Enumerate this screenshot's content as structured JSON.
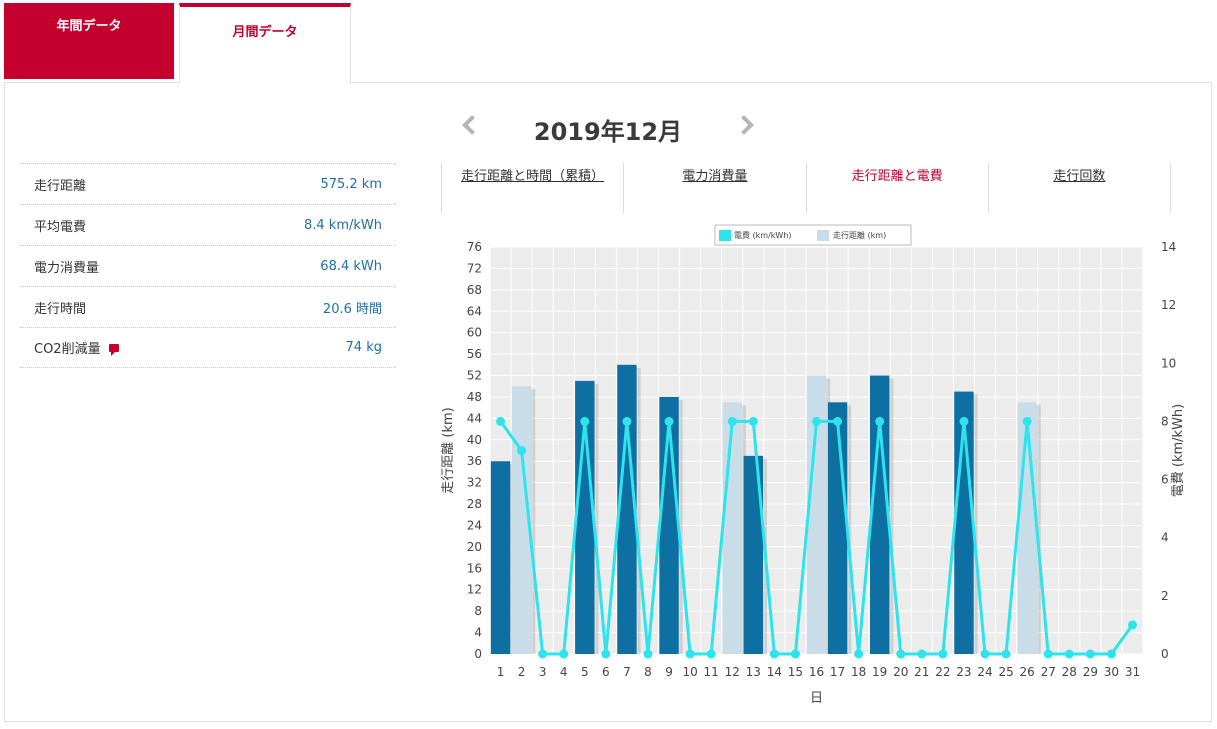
{
  "tabs": {
    "annual": "年間データ",
    "monthly": "月間データ"
  },
  "month_title": "2019年12月",
  "summary": [
    {
      "label": "走行距離",
      "value": "575.2 km"
    },
    {
      "label": "平均電費",
      "value": "8.4 km/kWh"
    },
    {
      "label": "電力消費量",
      "value": "68.4 kWh"
    },
    {
      "label": "走行時間",
      "value": "20.6 時間"
    },
    {
      "label": "CO2削減量",
      "value": "74 kg",
      "icon": "comment-icon"
    }
  ],
  "chart_tabs": [
    {
      "label": "走行距離と時間（累積）",
      "active": false
    },
    {
      "label": "電力消費量",
      "active": false
    },
    {
      "label": "走行距離と電費",
      "active": true
    },
    {
      "label": "走行回数",
      "active": false
    }
  ],
  "colors": {
    "accent": "#c4002f",
    "bar_dark": "#0e6fa3",
    "bar_light": "#c9dde9",
    "line": "#2de4ec",
    "value_text": "#1f6fa6"
  },
  "chart_data": {
    "type": "bar",
    "categories": [
      "1",
      "2",
      "3",
      "4",
      "5",
      "6",
      "7",
      "8",
      "9",
      "10",
      "11",
      "12",
      "13",
      "14",
      "15",
      "16",
      "17",
      "18",
      "19",
      "20",
      "21",
      "22",
      "23",
      "24",
      "25",
      "26",
      "27",
      "28",
      "29",
      "30",
      "31"
    ],
    "series": [
      {
        "name": "走行距離 (km)",
        "type": "bar",
        "axis": "left",
        "values": [
          36,
          50,
          0,
          0,
          51,
          0,
          54,
          0,
          48,
          0,
          0,
          47,
          37,
          0,
          0,
          52,
          47,
          0,
          52,
          0,
          0,
          0,
          49,
          0,
          0,
          47,
          0,
          0,
          0,
          0,
          0
        ],
        "style": [
          "dark",
          "light",
          "dark",
          "dark",
          "dark",
          "dark",
          "dark",
          "dark",
          "dark",
          "dark",
          "dark",
          "light",
          "dark",
          "dark",
          "dark",
          "light",
          "dark",
          "dark",
          "dark",
          "dark",
          "dark",
          "dark",
          "dark",
          "dark",
          "dark",
          "light",
          "dark",
          "dark",
          "dark",
          "dark",
          "dark"
        ]
      },
      {
        "name": "電費 (km/kWh)",
        "type": "line",
        "axis": "right",
        "values": [
          8,
          7,
          0,
          0,
          8,
          0,
          8,
          0,
          8,
          0,
          0,
          8,
          8,
          0,
          0,
          8,
          8,
          0,
          8,
          0,
          0,
          0,
          8,
          0,
          0,
          8,
          0,
          0,
          0,
          0,
          1
        ]
      }
    ],
    "xlabel": "日",
    "ylabel": "走行距離 (km)",
    "y2label": "電費 (km/kWh)",
    "ylim": [
      0,
      76
    ],
    "yticks": [
      0,
      4,
      8,
      12,
      16,
      20,
      24,
      28,
      32,
      36,
      40,
      44,
      48,
      52,
      56,
      60,
      64,
      68,
      72,
      76
    ],
    "y2lim": [
      0,
      14
    ],
    "y2ticks": [
      0,
      2,
      4,
      6,
      8,
      10,
      12,
      14
    ],
    "legend": [
      "電費 (km/kWh)",
      "走行距離 (km)"
    ],
    "legend_position": "top-center",
    "grid": true
  }
}
